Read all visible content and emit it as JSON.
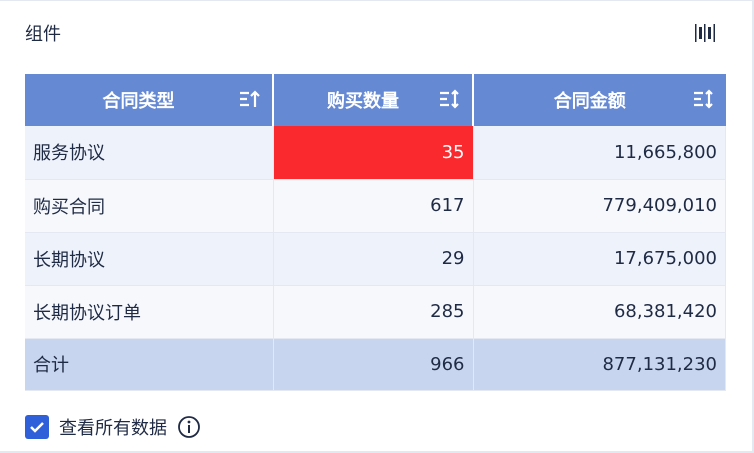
{
  "title": "组件",
  "toolbar_icon": "column-settings-icon",
  "columns": [
    {
      "label": "合同类型",
      "sort": "ascending"
    },
    {
      "label": "购买数量",
      "sort": "none"
    },
    {
      "label": "合同金额",
      "sort": "none"
    }
  ],
  "rows": [
    {
      "type": "服务协议",
      "qty": "35",
      "amount": "11,665,800",
      "highlight": true
    },
    {
      "type": "购买合同",
      "qty": "617",
      "amount": "779,409,010"
    },
    {
      "type": "长期协议",
      "qty": "29",
      "amount": "17,675,000"
    },
    {
      "type": "长期协议订单",
      "qty": "285",
      "amount": "68,381,420"
    }
  ],
  "total": {
    "label": "合计",
    "qty": "966",
    "amount": "877,131,230"
  },
  "footer": {
    "checkbox_label": "查看所有数据",
    "checked": true
  },
  "colors": {
    "header": "#6689d4",
    "highlight": "#f9292e",
    "total": "#c7d5ef",
    "checkbox": "#2f5fd9"
  }
}
